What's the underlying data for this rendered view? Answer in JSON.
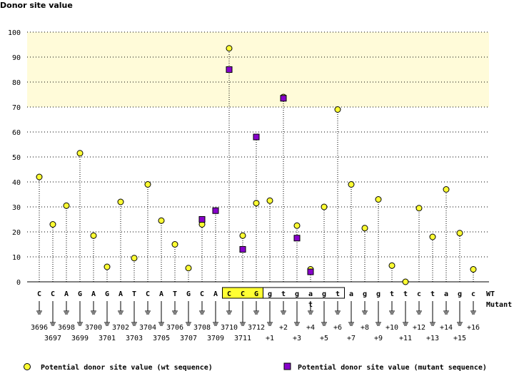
{
  "chart_data": {
    "type": "scatter",
    "ylabel": "Donor site value",
    "ylim": [
      0,
      100
    ],
    "yticks": [
      0,
      10,
      20,
      30,
      40,
      50,
      60,
      70,
      80,
      90,
      100
    ],
    "highlight_band": [
      70,
      100
    ],
    "wt_row_label": "WT",
    "mutant_row_label": "Mutant",
    "colors": {
      "band": "#fffbd9",
      "band_edge": "#fff6c8",
      "wt_marker": "#ffff33",
      "mutant_marker": "#8800cc",
      "mutant_text": "#000099",
      "exon_box": "#ffff33",
      "grid": "#000000"
    },
    "bases": [
      "C",
      "C",
      "A",
      "G",
      "A",
      "G",
      "A",
      "T",
      "C",
      "A",
      "T",
      "G",
      "C",
      "A",
      "C",
      "C",
      "G",
      "g",
      "t",
      "g",
      "a",
      "g",
      "t",
      "a",
      "g",
      "g",
      "t",
      "t",
      "c",
      "t",
      "a",
      "g",
      "c"
    ],
    "positions": [
      "3696",
      "3697",
      "3698",
      "3699",
      "3700",
      "3701",
      "3702",
      "3703",
      "3704",
      "3705",
      "3706",
      "3707",
      "3708",
      "3709",
      "3710",
      "3711",
      "3712",
      "+1",
      "+2",
      "+3",
      "+4",
      "+5",
      "+6",
      "+7",
      "+8",
      "+9",
      "+10",
      "+11",
      "+12",
      "+13",
      "+14",
      "+15",
      "+16"
    ],
    "exon_box": {
      "first_index": 14,
      "last_index": 16
    },
    "intron_box": {
      "first_index": 17,
      "last_index": 22
    },
    "mutation": {
      "index": 20,
      "base": "t"
    },
    "series": [
      {
        "name": "Potential donor site value (wt sequence)",
        "marker": "circle",
        "values": [
          42,
          23,
          30.5,
          51.5,
          18.5,
          6,
          32,
          9.5,
          39,
          24.5,
          15,
          5.5,
          23,
          28.5,
          93.5,
          18.5,
          31.5,
          32.5,
          74,
          22.5,
          5,
          30,
          69,
          39,
          21.5,
          33,
          6.5,
          0,
          29.5,
          18,
          37,
          19.5,
          5
        ]
      },
      {
        "name": "Potential donor site value (mutant sequence)",
        "marker": "square",
        "values": [
          null,
          null,
          null,
          null,
          null,
          null,
          null,
          null,
          null,
          null,
          null,
          null,
          25,
          28.5,
          85,
          13,
          58,
          null,
          73.5,
          17.5,
          4,
          null,
          null,
          null,
          null,
          null,
          null,
          null,
          null,
          null,
          null,
          null,
          null
        ]
      }
    ]
  }
}
